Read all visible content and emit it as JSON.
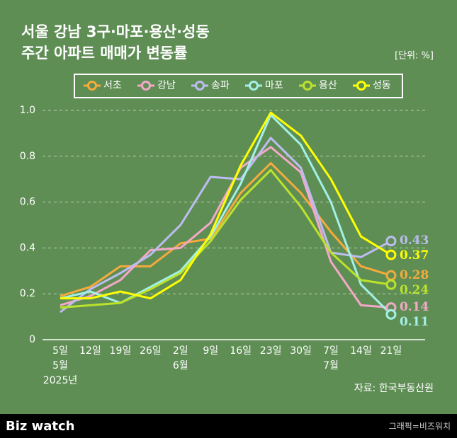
{
  "chart_data": {
    "type": "line",
    "title": "서울 강남 3구·마포·용산·성동",
    "subtitle": "주간 아파트 매매가 변동률",
    "unit": "[단위: %]",
    "source": "자료: 한국부동산원",
    "credit": "그래픽=비즈워치",
    "brand": "Biz watch",
    "categories": [
      "5일",
      "12일",
      "19일",
      "26일",
      "2일",
      "9일",
      "16일",
      "23일",
      "30일",
      "7일",
      "14일",
      "21일"
    ],
    "month_labels": [
      "5월",
      null,
      null,
      null,
      "6월",
      null,
      null,
      null,
      null,
      "7월",
      null,
      null
    ],
    "year_label": "2025년",
    "ylim": [
      0,
      1
    ],
    "yticks": [
      0,
      0.2,
      0.4,
      0.6,
      0.8,
      {
        "value": 1,
        "label": "1.0"
      }
    ],
    "grid": true,
    "series": [
      {
        "name": "서초",
        "color": "#f5aa3c",
        "values": [
          0.19,
          0.23,
          0.32,
          0.32,
          0.42,
          0.44,
          0.64,
          0.77,
          0.64,
          0.47,
          0.32,
          0.28
        ]
      },
      {
        "name": "강남",
        "color": "#f4a8c8",
        "values": [
          0.15,
          0.19,
          0.26,
          0.39,
          0.4,
          0.51,
          0.75,
          0.84,
          0.73,
          0.34,
          0.15,
          0.14
        ]
      },
      {
        "name": "송파",
        "color": "#bcbcf0",
        "values": [
          0.12,
          0.22,
          0.29,
          0.37,
          0.5,
          0.71,
          0.7,
          0.88,
          0.75,
          0.38,
          0.36,
          0.43
        ]
      },
      {
        "name": "마포",
        "color": "#a2f0e6",
        "values": [
          0.18,
          0.21,
          0.16,
          0.23,
          0.3,
          0.45,
          0.68,
          0.98,
          0.85,
          0.6,
          0.24,
          0.11
        ]
      },
      {
        "name": "용산",
        "color": "#bce22c",
        "values": [
          0.14,
          0.15,
          0.16,
          0.22,
          0.29,
          0.43,
          0.61,
          0.74,
          0.58,
          0.38,
          0.26,
          0.24
        ]
      },
      {
        "name": "성동",
        "color": "#ffff00",
        "values": [
          0.18,
          0.18,
          0.21,
          0.18,
          0.26,
          0.46,
          0.76,
          0.99,
          0.89,
          0.7,
          0.45,
          0.37
        ]
      }
    ]
  }
}
